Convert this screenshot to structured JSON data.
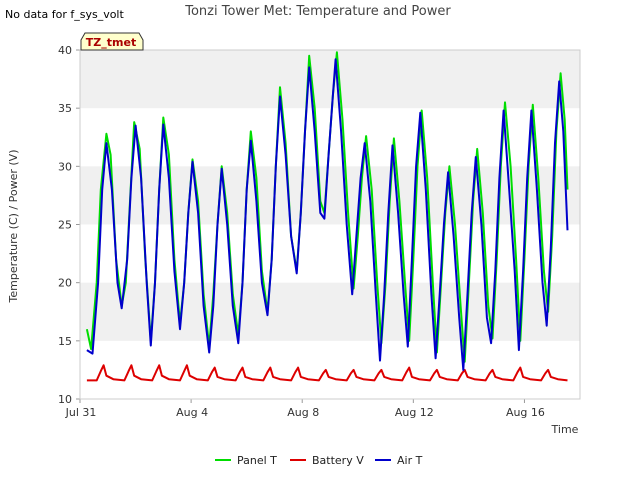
{
  "title": "Tonzi Tower Met: Temperature and Power",
  "no_data_note": "No data for f_sys_volt",
  "badge": "TZ_tmet",
  "chart_data": {
    "type": "line",
    "title": "Tonzi Tower Met: Temperature and Power",
    "xlabel": "Time",
    "ylabel": "Temperature (C) / Power (V)",
    "xlim": [
      0,
      18
    ],
    "ylim": [
      10,
      40
    ],
    "x_start_label": "Jul 31",
    "x_ticks": [
      {
        "value": 0,
        "label": "Jul 31"
      },
      {
        "value": 4,
        "label": "Aug 4"
      },
      {
        "value": 8,
        "label": "Aug 8"
      },
      {
        "value": 12,
        "label": "Aug 12"
      },
      {
        "value": 16,
        "label": "Aug 16"
      }
    ],
    "y_ticks": [
      10,
      15,
      20,
      25,
      30,
      35,
      40
    ],
    "bands": "alternating light grey horizontal bands",
    "legend_position": "bottom",
    "series": [
      {
        "name": "Panel T",
        "color": "#00dd00",
        "points": [
          [
            0.25,
            16.0
          ],
          [
            0.4,
            14.3
          ],
          [
            0.6,
            20
          ],
          [
            0.75,
            28
          ],
          [
            0.95,
            32.8
          ],
          [
            1.1,
            31
          ],
          [
            1.3,
            22
          ],
          [
            1.5,
            18
          ],
          [
            1.65,
            20
          ],
          [
            1.8,
            27
          ],
          [
            1.95,
            33.8
          ],
          [
            2.15,
            31.5
          ],
          [
            2.35,
            22
          ],
          [
            2.55,
            15.0
          ],
          [
            2.7,
            20
          ],
          [
            2.85,
            28
          ],
          [
            3.0,
            34.2
          ],
          [
            3.2,
            31
          ],
          [
            3.4,
            22
          ],
          [
            3.6,
            16.5
          ],
          [
            3.75,
            20
          ],
          [
            3.9,
            26
          ],
          [
            4.05,
            30.6
          ],
          [
            4.25,
            27
          ],
          [
            4.45,
            19
          ],
          [
            4.65,
            14.5
          ],
          [
            4.8,
            19
          ],
          [
            4.95,
            25
          ],
          [
            5.1,
            30.0
          ],
          [
            5.3,
            26
          ],
          [
            5.5,
            19
          ],
          [
            5.7,
            15.5
          ],
          [
            5.85,
            20
          ],
          [
            6.0,
            28
          ],
          [
            6.15,
            33.0
          ],
          [
            6.35,
            29
          ],
          [
            6.55,
            21
          ],
          [
            6.75,
            17.5
          ],
          [
            6.9,
            22
          ],
          [
            7.05,
            30
          ],
          [
            7.2,
            36.8
          ],
          [
            7.4,
            32
          ],
          [
            7.6,
            24
          ],
          [
            7.8,
            21
          ],
          [
            7.95,
            26
          ],
          [
            8.1,
            33
          ],
          [
            8.25,
            39.5
          ],
          [
            8.45,
            35
          ],
          [
            8.65,
            27
          ],
          [
            8.8,
            26
          ],
          [
            8.95,
            31
          ],
          [
            9.1,
            36
          ],
          [
            9.25,
            39.8
          ],
          [
            9.45,
            34
          ],
          [
            9.65,
            26
          ],
          [
            9.85,
            19.5
          ],
          [
            10.0,
            24
          ],
          [
            10.15,
            29
          ],
          [
            10.3,
            32.6
          ],
          [
            10.5,
            28
          ],
          [
            10.7,
            20
          ],
          [
            10.85,
            14.8
          ],
          [
            11.0,
            20
          ],
          [
            11.15,
            27
          ],
          [
            11.3,
            32.4
          ],
          [
            11.5,
            27
          ],
          [
            11.7,
            20
          ],
          [
            11.85,
            15.0
          ],
          [
            12.0,
            22
          ],
          [
            12.15,
            30
          ],
          [
            12.3,
            34.8
          ],
          [
            12.5,
            29
          ],
          [
            12.7,
            20
          ],
          [
            12.85,
            14.0
          ],
          [
            13.0,
            20
          ],
          [
            13.15,
            26
          ],
          [
            13.3,
            30.0
          ],
          [
            13.5,
            25
          ],
          [
            13.7,
            18
          ],
          [
            13.85,
            13.2
          ],
          [
            14.0,
            20
          ],
          [
            14.15,
            27
          ],
          [
            14.3,
            31.5
          ],
          [
            14.5,
            26
          ],
          [
            14.7,
            18
          ],
          [
            14.85,
            15.2
          ],
          [
            15.0,
            22
          ],
          [
            15.15,
            30
          ],
          [
            15.3,
            35.5
          ],
          [
            15.5,
            30
          ],
          [
            15.7,
            22
          ],
          [
            15.85,
            15.0
          ],
          [
            16.0,
            22
          ],
          [
            16.15,
            30
          ],
          [
            16.3,
            35.3
          ],
          [
            16.5,
            29
          ],
          [
            16.7,
            21
          ],
          [
            16.85,
            17.5
          ],
          [
            17.0,
            24
          ],
          [
            17.15,
            33
          ],
          [
            17.3,
            38.0
          ],
          [
            17.45,
            34
          ],
          [
            17.55,
            28.0
          ]
        ]
      },
      {
        "name": "Battery V",
        "color": "#dd0000",
        "points": [
          [
            0.25,
            11.6
          ],
          [
            0.6,
            11.6
          ],
          [
            0.75,
            12.4
          ],
          [
            0.85,
            12.9
          ],
          [
            0.95,
            12.0
          ],
          [
            1.2,
            11.7
          ],
          [
            1.6,
            11.6
          ],
          [
            1.75,
            12.4
          ],
          [
            1.85,
            12.9
          ],
          [
            1.95,
            12.0
          ],
          [
            2.2,
            11.7
          ],
          [
            2.6,
            11.6
          ],
          [
            2.75,
            12.4
          ],
          [
            2.85,
            12.9
          ],
          [
            2.95,
            12.0
          ],
          [
            3.2,
            11.7
          ],
          [
            3.6,
            11.6
          ],
          [
            3.75,
            12.4
          ],
          [
            3.85,
            12.9
          ],
          [
            3.95,
            12.0
          ],
          [
            4.2,
            11.7
          ],
          [
            4.6,
            11.6
          ],
          [
            4.75,
            12.3
          ],
          [
            4.85,
            12.7
          ],
          [
            4.95,
            11.9
          ],
          [
            5.2,
            11.7
          ],
          [
            5.6,
            11.6
          ],
          [
            5.75,
            12.3
          ],
          [
            5.85,
            12.7
          ],
          [
            5.95,
            11.9
          ],
          [
            6.2,
            11.7
          ],
          [
            6.6,
            11.6
          ],
          [
            6.75,
            12.3
          ],
          [
            6.85,
            12.7
          ],
          [
            6.95,
            11.9
          ],
          [
            7.2,
            11.7
          ],
          [
            7.6,
            11.6
          ],
          [
            7.75,
            12.3
          ],
          [
            7.85,
            12.7
          ],
          [
            7.95,
            11.9
          ],
          [
            8.2,
            11.7
          ],
          [
            8.6,
            11.6
          ],
          [
            8.75,
            12.2
          ],
          [
            8.85,
            12.5
          ],
          [
            8.95,
            11.9
          ],
          [
            9.2,
            11.7
          ],
          [
            9.6,
            11.6
          ],
          [
            9.75,
            12.2
          ],
          [
            9.85,
            12.5
          ],
          [
            9.95,
            11.9
          ],
          [
            10.2,
            11.7
          ],
          [
            10.6,
            11.6
          ],
          [
            10.75,
            12.2
          ],
          [
            10.85,
            12.5
          ],
          [
            10.95,
            11.9
          ],
          [
            11.2,
            11.7
          ],
          [
            11.6,
            11.6
          ],
          [
            11.75,
            12.3
          ],
          [
            11.85,
            12.7
          ],
          [
            11.95,
            11.9
          ],
          [
            12.2,
            11.7
          ],
          [
            12.6,
            11.6
          ],
          [
            12.75,
            12.2
          ],
          [
            12.85,
            12.5
          ],
          [
            12.95,
            11.9
          ],
          [
            13.2,
            11.7
          ],
          [
            13.6,
            11.6
          ],
          [
            13.75,
            12.2
          ],
          [
            13.85,
            12.5
          ],
          [
            13.95,
            11.9
          ],
          [
            14.2,
            11.7
          ],
          [
            14.6,
            11.6
          ],
          [
            14.75,
            12.2
          ],
          [
            14.85,
            12.5
          ],
          [
            14.95,
            11.9
          ],
          [
            15.2,
            11.7
          ],
          [
            15.6,
            11.6
          ],
          [
            15.75,
            12.3
          ],
          [
            15.85,
            12.7
          ],
          [
            15.95,
            11.9
          ],
          [
            16.2,
            11.7
          ],
          [
            16.6,
            11.6
          ],
          [
            16.75,
            12.2
          ],
          [
            16.85,
            12.5
          ],
          [
            16.95,
            11.9
          ],
          [
            17.2,
            11.7
          ],
          [
            17.55,
            11.6
          ]
        ]
      },
      {
        "name": "Air T",
        "color": "#0000cc",
        "points": [
          [
            0.25,
            14.2
          ],
          [
            0.45,
            13.9
          ],
          [
            0.65,
            20
          ],
          [
            0.8,
            28
          ],
          [
            0.95,
            32.0
          ],
          [
            1.15,
            28
          ],
          [
            1.35,
            20
          ],
          [
            1.5,
            17.8
          ],
          [
            1.7,
            22
          ],
          [
            1.85,
            29
          ],
          [
            2.0,
            33.5
          ],
          [
            2.2,
            29
          ],
          [
            2.4,
            20
          ],
          [
            2.55,
            14.6
          ],
          [
            2.7,
            20
          ],
          [
            2.85,
            28
          ],
          [
            3.0,
            33.6
          ],
          [
            3.2,
            29
          ],
          [
            3.4,
            21
          ],
          [
            3.6,
            16.0
          ],
          [
            3.75,
            20
          ],
          [
            3.9,
            26
          ],
          [
            4.05,
            30.4
          ],
          [
            4.25,
            26
          ],
          [
            4.45,
            18
          ],
          [
            4.65,
            14.0
          ],
          [
            4.8,
            18
          ],
          [
            4.95,
            25
          ],
          [
            5.1,
            29.8
          ],
          [
            5.3,
            25
          ],
          [
            5.5,
            18
          ],
          [
            5.7,
            14.8
          ],
          [
            5.85,
            20
          ],
          [
            6.0,
            28
          ],
          [
            6.15,
            32.2
          ],
          [
            6.35,
            27
          ],
          [
            6.55,
            20
          ],
          [
            6.75,
            17.2
          ],
          [
            6.9,
            22
          ],
          [
            7.05,
            30
          ],
          [
            7.2,
            36.0
          ],
          [
            7.4,
            31
          ],
          [
            7.6,
            24
          ],
          [
            7.8,
            20.8
          ],
          [
            7.95,
            26
          ],
          [
            8.1,
            33
          ],
          [
            8.25,
            38.5
          ],
          [
            8.45,
            33
          ],
          [
            8.65,
            26
          ],
          [
            8.8,
            25.5
          ],
          [
            8.95,
            31
          ],
          [
            9.1,
            36
          ],
          [
            9.2,
            39.2
          ],
          [
            9.4,
            33
          ],
          [
            9.6,
            25
          ],
          [
            9.8,
            19.0
          ],
          [
            9.95,
            24
          ],
          [
            10.1,
            29
          ],
          [
            10.25,
            32.0
          ],
          [
            10.45,
            27
          ],
          [
            10.65,
            19
          ],
          [
            10.8,
            13.3
          ],
          [
            10.95,
            19
          ],
          [
            11.1,
            26
          ],
          [
            11.25,
            31.8
          ],
          [
            11.45,
            26
          ],
          [
            11.65,
            19
          ],
          [
            11.8,
            14.5
          ],
          [
            11.95,
            22
          ],
          [
            12.1,
            30
          ],
          [
            12.25,
            34.6
          ],
          [
            12.45,
            28
          ],
          [
            12.65,
            19
          ],
          [
            12.8,
            13.5
          ],
          [
            12.95,
            19
          ],
          [
            13.1,
            25
          ],
          [
            13.25,
            29.5
          ],
          [
            13.45,
            24
          ],
          [
            13.65,
            17
          ],
          [
            13.8,
            12.5
          ],
          [
            13.95,
            19
          ],
          [
            14.1,
            26
          ],
          [
            14.25,
            30.8
          ],
          [
            14.45,
            25
          ],
          [
            14.65,
            17
          ],
          [
            14.8,
            14.8
          ],
          [
            14.95,
            21
          ],
          [
            15.1,
            29
          ],
          [
            15.25,
            34.8
          ],
          [
            15.45,
            28
          ],
          [
            15.65,
            21
          ],
          [
            15.8,
            14.2
          ],
          [
            15.95,
            21
          ],
          [
            16.1,
            29
          ],
          [
            16.25,
            34.8
          ],
          [
            16.45,
            28
          ],
          [
            16.65,
            20
          ],
          [
            16.8,
            16.3
          ],
          [
            16.95,
            23
          ],
          [
            17.1,
            32
          ],
          [
            17.25,
            37.3
          ],
          [
            17.4,
            33
          ],
          [
            17.55,
            24.5
          ]
        ]
      }
    ]
  }
}
